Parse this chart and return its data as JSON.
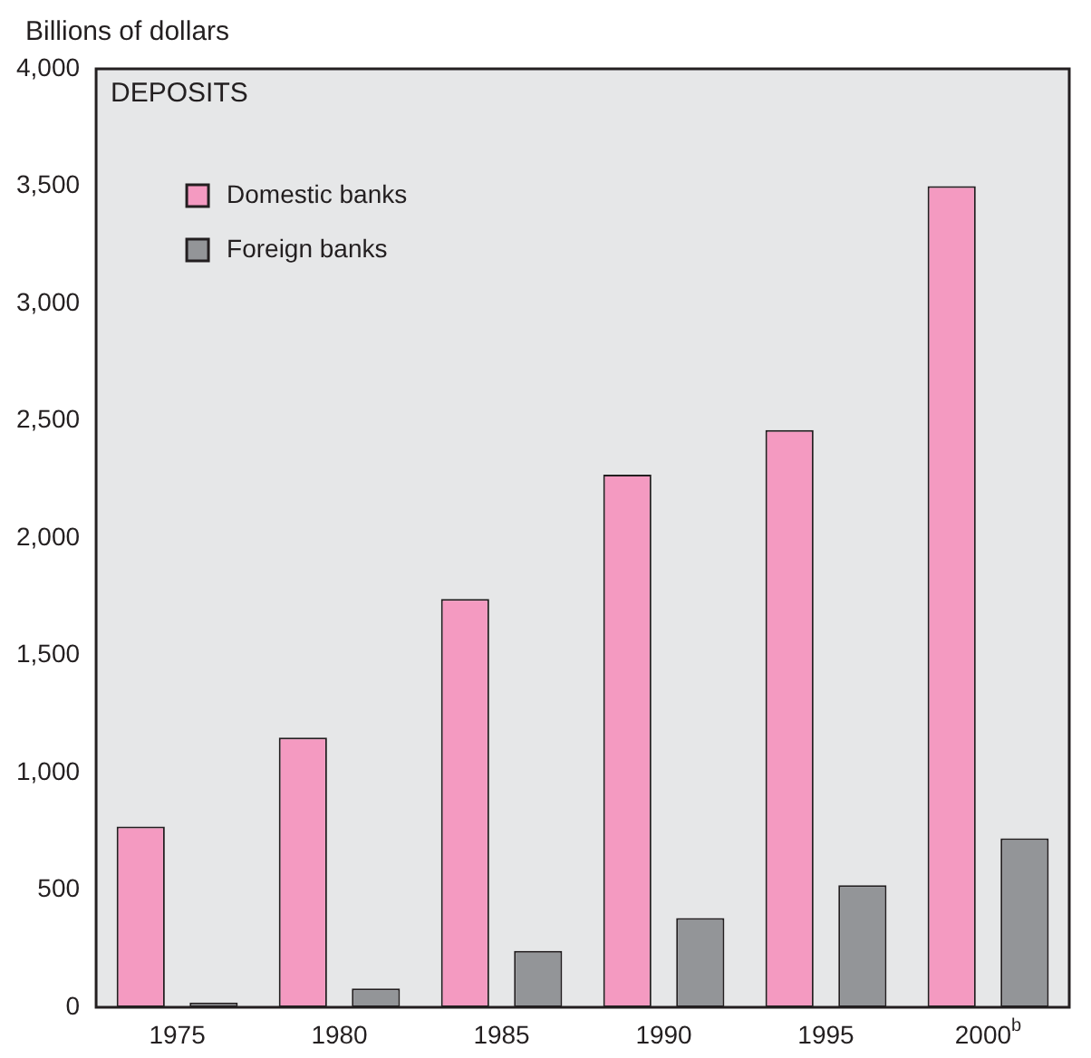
{
  "chart_data": {
    "type": "bar",
    "title": "DEPOSITS",
    "ylabel": "Billions of dollars",
    "categories": [
      "1975",
      "1980",
      "1985",
      "1990",
      "1995",
      "2000$^{b}$"
    ],
    "series": [
      {
        "name": "Domestic banks",
        "color": "#f49ac1",
        "values": [
          770,
          1150,
          1740,
          2270,
          2460,
          3500
        ]
      },
      {
        "name": "Foreign banks",
        "color": "#939598",
        "values": [
          20,
          80,
          240,
          380,
          520,
          720
        ]
      }
    ],
    "ylim": [
      0,
      4000
    ],
    "yticks": [
      0,
      {
        "value": 500,
        "label": "500"
      },
      {
        "value": 1000,
        "label": "1,000"
      },
      {
        "value": 1500,
        "label": "1,500"
      },
      {
        "value": 2000,
        "label": "2,000"
      },
      {
        "value": 2500,
        "label": "2,500"
      },
      {
        "value": 3000,
        "label": "3,000"
      },
      {
        "value": 3500,
        "label": "3,500"
      },
      {
        "value": 4000,
        "label": "4,000"
      }
    ],
    "grid": false,
    "legend": "top left"
  }
}
